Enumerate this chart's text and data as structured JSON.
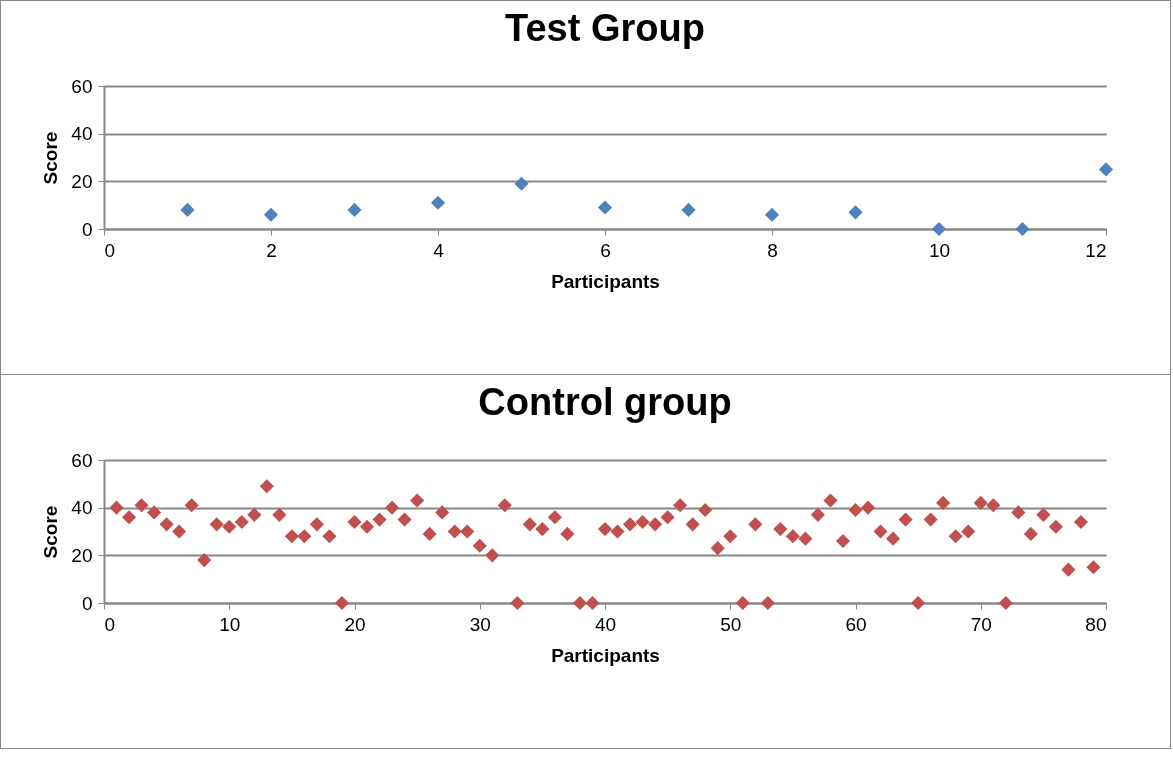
{
  "chart_data": [
    {
      "type": "scatter",
      "title": "Test Group",
      "xlabel": "Participants",
      "ylabel": "Score",
      "x": [
        1,
        2,
        3,
        4,
        5,
        6,
        7,
        8,
        9,
        10,
        11,
        12
      ],
      "series": [
        {
          "color": "#4f81bd",
          "values": [
            8,
            6,
            8,
            11,
            19,
            9,
            8,
            6,
            7,
            0,
            0,
            25
          ]
        }
      ],
      "xlim": [
        0,
        12
      ],
      "xticks": [
        0,
        2,
        4,
        6,
        8,
        10,
        12
      ],
      "ylim": [
        0,
        60
      ],
      "yticks": [
        0,
        20,
        40,
        60
      ],
      "grid": "y",
      "marker": "diamond",
      "legend": false
    },
    {
      "type": "scatter",
      "title": "Control group",
      "xlabel": "Participants",
      "ylabel": "Score",
      "x": [
        1,
        2,
        3,
        4,
        5,
        6,
        7,
        8,
        9,
        10,
        11,
        12,
        13,
        14,
        15,
        16,
        17,
        18,
        19,
        20,
        21,
        22,
        23,
        24,
        25,
        26,
        27,
        28,
        29,
        30,
        31,
        32,
        33,
        34,
        35,
        36,
        37,
        38,
        39,
        40,
        41,
        42,
        43,
        44,
        45,
        46,
        47,
        48,
        49,
        50,
        51,
        52,
        53,
        54,
        55,
        56,
        57,
        58,
        59,
        60,
        61,
        62,
        63,
        64,
        65,
        66,
        67,
        68,
        69,
        70,
        71,
        72,
        73,
        74,
        75,
        76,
        77,
        78,
        79
      ],
      "series": [
        {
          "color": "#c0504d",
          "values": [
            40,
            36,
            41,
            38,
            33,
            30,
            41,
            18,
            33,
            32,
            34,
            37,
            49,
            37,
            28,
            28,
            33,
            28,
            0,
            34,
            32,
            35,
            40,
            35,
            43,
            29,
            38,
            30,
            30,
            24,
            20,
            41,
            0,
            33,
            31,
            36,
            29,
            0,
            0,
            31,
            30,
            33,
            34,
            33,
            36,
            41,
            33,
            39,
            23,
            28,
            0,
            33,
            0,
            31,
            28,
            27,
            37,
            43,
            26,
            39,
            40,
            30,
            27,
            35,
            0,
            35,
            42,
            28,
            30,
            42,
            41,
            0,
            38,
            29,
            37,
            32,
            14,
            34,
            15
          ]
        }
      ],
      "xlim": [
        0,
        80
      ],
      "xticks": [
        0,
        10,
        20,
        30,
        40,
        50,
        60,
        70,
        80
      ],
      "ylim": [
        0,
        60
      ],
      "yticks": [
        0,
        20,
        40,
        60
      ],
      "grid": "y",
      "marker": "diamond",
      "legend": false
    }
  ]
}
